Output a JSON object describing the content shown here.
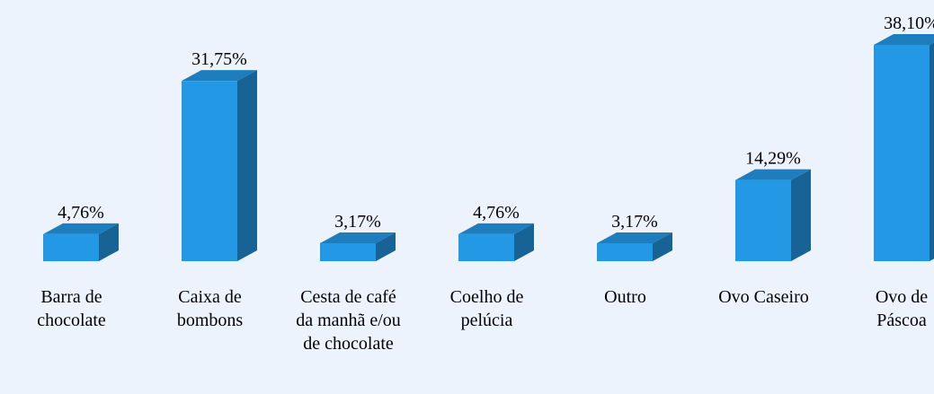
{
  "chart_data": {
    "type": "bar",
    "categories": [
      "Barra de chocolate",
      "Caixa de bombons",
      "Cesta de café da manhã e/ou de chocolate",
      "Coelho de pelúcia",
      "Outro",
      "Ovo Caseiro",
      "Ovo de Páscoa"
    ],
    "values": [
      4.76,
      31.75,
      3.17,
      4.76,
      3.17,
      14.29,
      38.1
    ],
    "value_labels": [
      "4,76%",
      "31,75%",
      "3,17%",
      "4,76%",
      "3,17%",
      "14,29%",
      "38,10%"
    ],
    "color": "#2399e6"
  }
}
